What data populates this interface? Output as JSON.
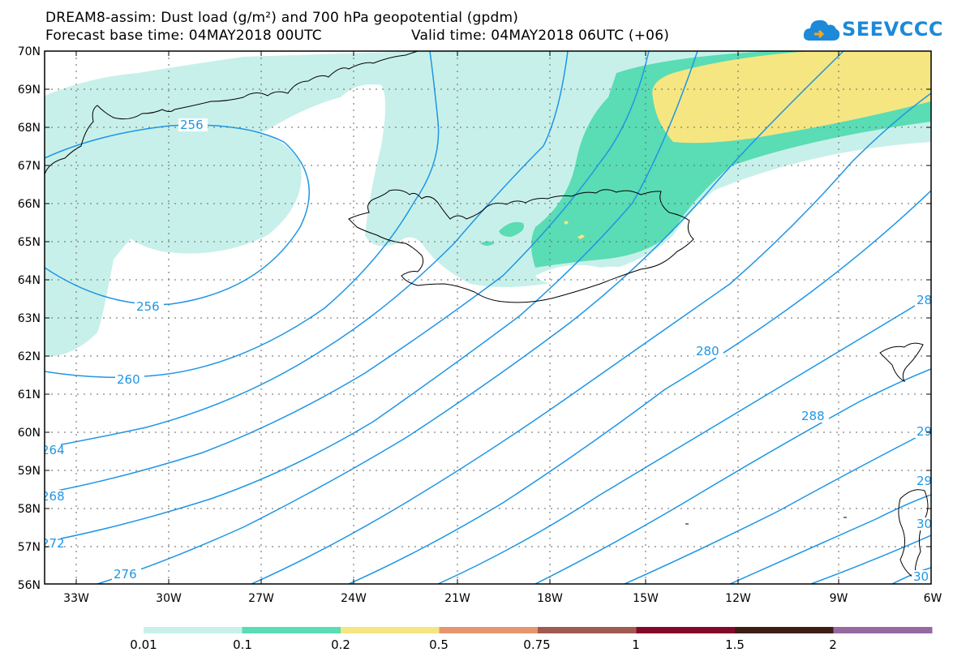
{
  "title": {
    "line1": "DREAM8-assim: Dust load (g/m²) and 700 hPa geopotential (gpdm)",
    "base_time": "Forecast base time: 04MAY2018 00UTC",
    "valid_time": "Valid time: 04MAY2018 06UTC (+06)"
  },
  "logo": {
    "text": "SEEVCCC",
    "icon": "cloud-logo-icon"
  },
  "map": {
    "lat_labels": [
      "70N",
      "69N",
      "68N",
      "67N",
      "66N",
      "65N",
      "64N",
      "63N",
      "62N",
      "61N",
      "60N",
      "59N",
      "58N",
      "57N",
      "56N"
    ],
    "lon_labels": [
      "33W",
      "30W",
      "27W",
      "24W",
      "21W",
      "18W",
      "15W",
      "12W",
      "9W",
      "6W"
    ],
    "contour_labels": {
      "c256a": "256",
      "c256b": "256",
      "c260": "260",
      "c264": "264",
      "c268": "268",
      "c272": "272",
      "c276": "276",
      "c280": "280",
      "c284": "28",
      "c288": "288",
      "c292": "29",
      "c296": "29",
      "c300": "30",
      "c304": "30"
    },
    "contour_color": "#1e96e6"
  },
  "colorbar": {
    "labels": [
      "0.01",
      "0.1",
      "0.2",
      "0.5",
      "0.75",
      "1",
      "1.5",
      "2"
    ],
    "colors": [
      "#c8f0ea",
      "#5adcb4",
      "#f5e682",
      "#e6966e",
      "#a05a50",
      "#820a28",
      "#3c1e14",
      "#9669a0"
    ]
  }
}
